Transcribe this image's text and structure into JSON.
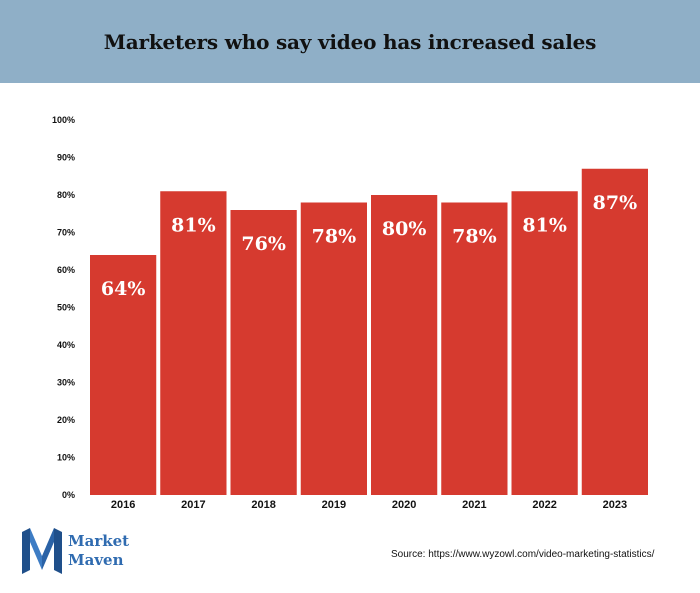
{
  "header": {
    "title": "Marketers who say video has increased sales"
  },
  "chart_data": {
    "type": "bar",
    "title": "Marketers who say video has increased sales",
    "categories": [
      "2016",
      "2017",
      "2018",
      "2019",
      "2020",
      "2021",
      "2022",
      "2023"
    ],
    "values": [
      64,
      81,
      76,
      78,
      80,
      78,
      81,
      87
    ],
    "data_labels": [
      "64%",
      "81%",
      "76%",
      "78%",
      "80%",
      "78%",
      "81%",
      "87%"
    ],
    "ylim": [
      0,
      100
    ],
    "yticks": [
      "0%",
      "10%",
      "20%",
      "30%",
      "40%",
      "50%",
      "60%",
      "70%",
      "80%",
      "90%",
      "100%"
    ],
    "xlabel": "",
    "ylabel": "",
    "grid": false,
    "bar_color": "#d63a2f"
  },
  "logo": {
    "line1": "Market",
    "line2": "Maven",
    "color": "#2f6bb0"
  },
  "source": "Source: https://www.wyzowl.com/video-marketing-statistics/"
}
